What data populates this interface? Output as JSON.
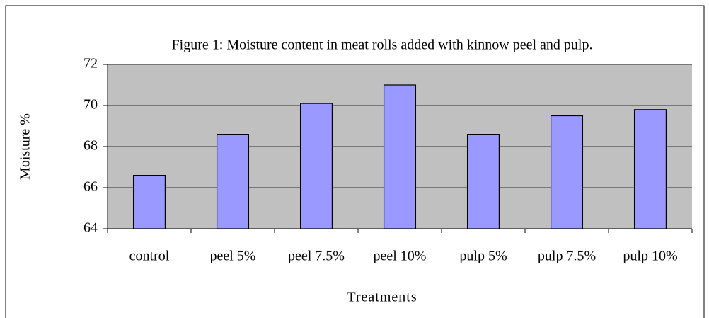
{
  "chart_data": {
    "type": "bar",
    "title": "Figure 1: Moisture content in meat rolls added with kinnow peel and pulp.",
    "x_label": "Treatments",
    "y_label": "Moisture %",
    "categories": [
      "control",
      "peel 5%",
      "peel 7.5%",
      "peel 10%",
      "pulp 5%",
      "pulp 7.5%",
      "pulp 10%"
    ],
    "values": [
      66.6,
      68.6,
      70.1,
      71.0,
      68.6,
      69.5,
      69.8
    ],
    "color": "#9999ff",
    "ylim": [
      64,
      72
    ],
    "yticks": [
      64,
      66,
      68,
      70,
      72
    ],
    "grid": true
  }
}
